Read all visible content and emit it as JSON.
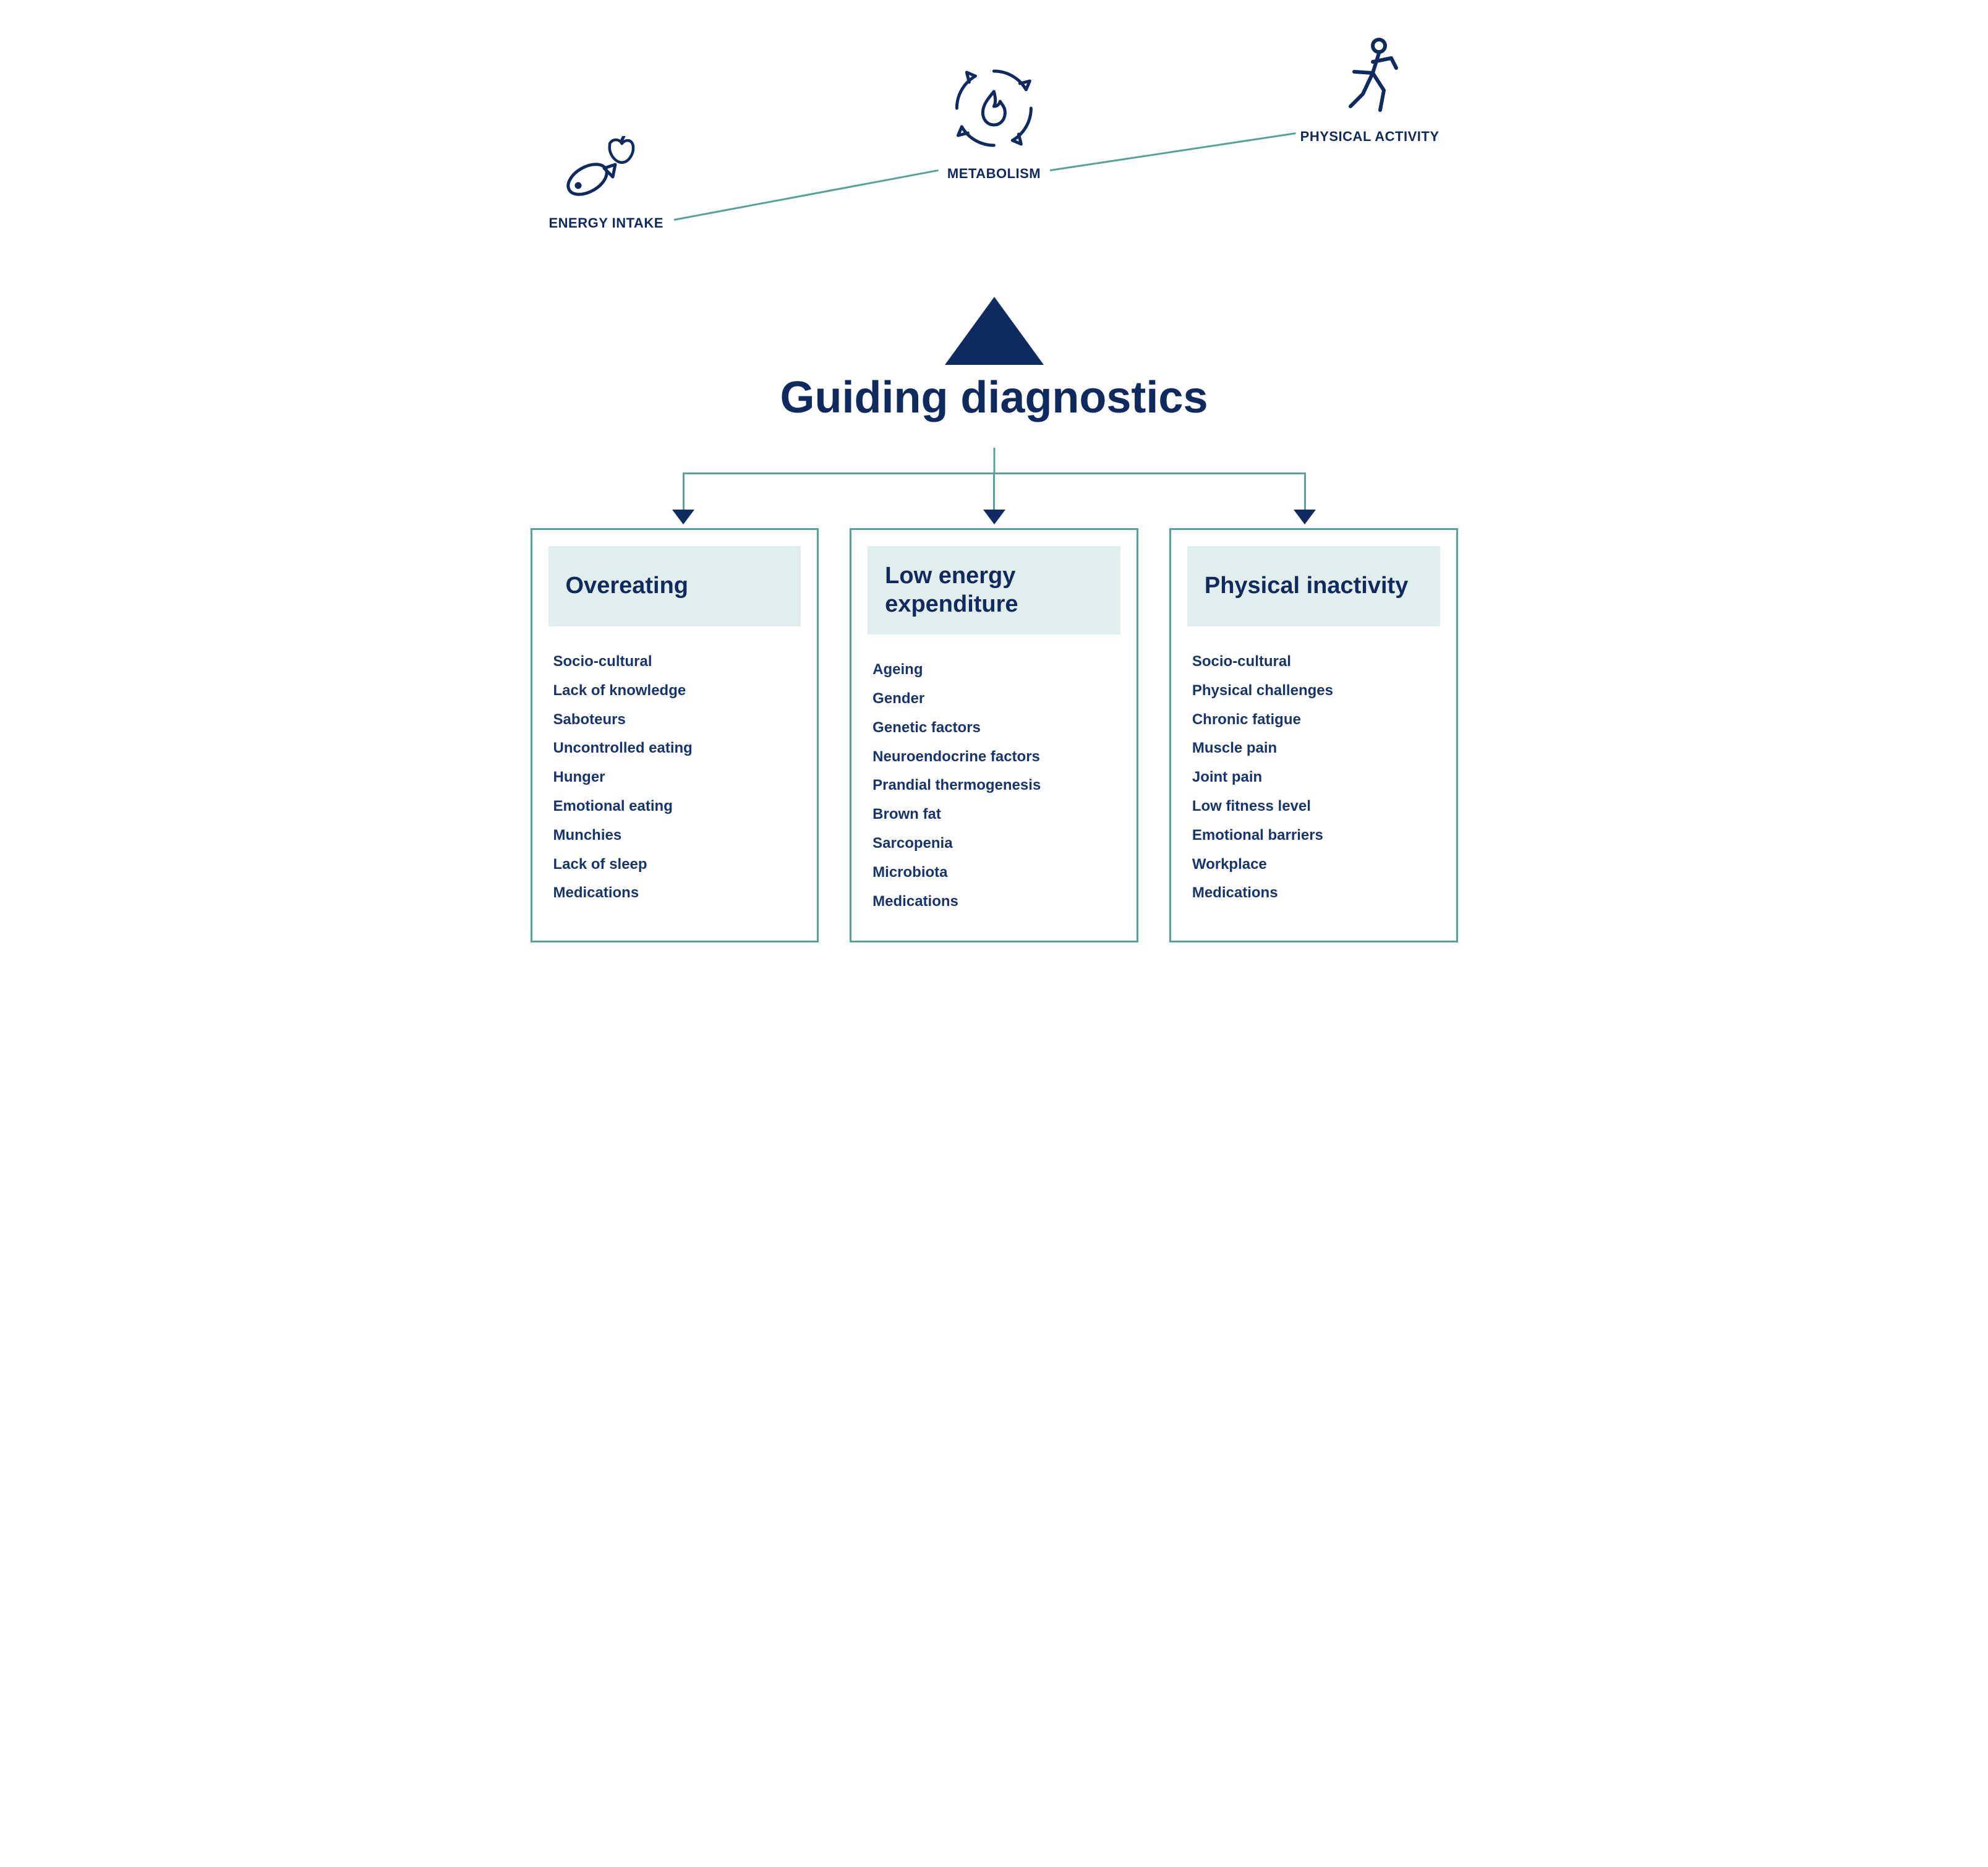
{
  "colors": {
    "navy": "#0f2a5e",
    "teal": "#57a19a",
    "panel_header_bg": "#e2edee",
    "background": "#ffffff"
  },
  "typography": {
    "title_fontsize_pt": 54,
    "caption_fontsize_pt": 16,
    "panel_head_fontsize_pt": 28,
    "list_fontsize_pt": 18,
    "font_family": "sans-serif"
  },
  "top_nodes": {
    "intake": {
      "label": "ENERGY INTAKE",
      "icon": "fish-apple"
    },
    "metab": {
      "label": "METABOLISM",
      "icon": "cycle-flame"
    },
    "activity": {
      "label": "PHYSICAL ACTIVITY",
      "icon": "runner"
    }
  },
  "title": "Guiding diagnostics",
  "panels": [
    {
      "key": "overeating",
      "heading": "Overeating",
      "items": [
        "Socio-cultural",
        "Lack of knowledge",
        "Saboteurs",
        "Uncontrolled eating",
        "Hunger",
        "Emotional eating",
        "Munchies",
        "Lack of sleep",
        "Medications"
      ]
    },
    {
      "key": "low_energy",
      "heading": "Low energy expenditure",
      "items": [
        "Ageing",
        "Gender",
        "Genetic factors",
        "Neuroendocrine factors",
        "Prandial thermogenesis",
        "Brown fat",
        "Sarcopenia",
        "Microbiota",
        "Medications"
      ]
    },
    {
      "key": "inactivity",
      "heading": "Physical inactivity",
      "items": [
        "Socio-cultural",
        "Physical challenges",
        "Chronic fatigue",
        "Muscle pain",
        "Joint pain",
        "Low fitness level",
        "Emotional barriers",
        "Workplace",
        "Medications"
      ]
    }
  ],
  "layout": {
    "type": "infographic-tree",
    "top_connectors": [
      {
        "from": "intake",
        "to": "metab"
      },
      {
        "from": "metab",
        "to": "activity"
      }
    ],
    "branch_positions_pct": [
      16.5,
      50,
      83.5
    ]
  }
}
